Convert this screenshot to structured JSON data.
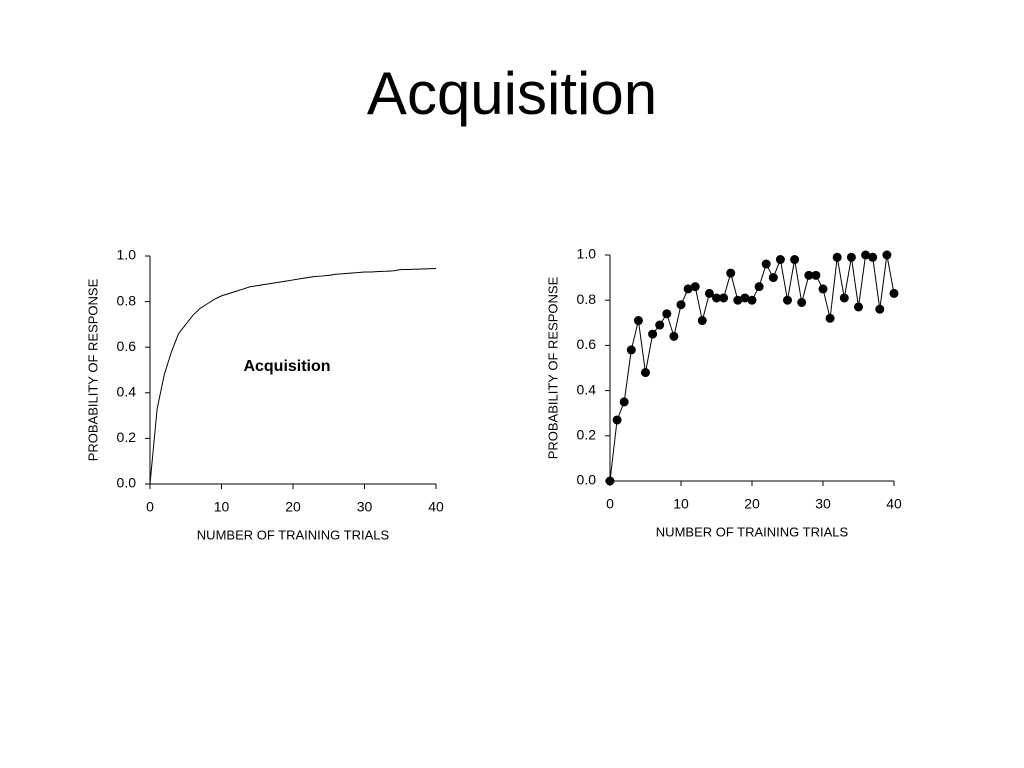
{
  "title": "Acquisition",
  "chart_data": [
    {
      "type": "line",
      "annotation": "Acquisition",
      "color": "#000000",
      "marker": "none",
      "x": [
        0,
        1,
        2,
        3,
        4,
        5,
        6,
        7,
        8,
        9,
        10,
        11,
        12,
        13,
        14,
        15,
        16,
        17,
        18,
        19,
        20,
        21,
        22,
        23,
        24,
        25,
        26,
        27,
        28,
        29,
        30,
        31,
        32,
        33,
        34,
        35,
        36,
        37,
        38,
        39,
        40
      ],
      "values": [
        0,
        0.33,
        0.48,
        0.58,
        0.66,
        0.7,
        0.74,
        0.77,
        0.79,
        0.81,
        0.825,
        0.835,
        0.845,
        0.855,
        0.865,
        0.87,
        0.875,
        0.88,
        0.885,
        0.89,
        0.895,
        0.9,
        0.905,
        0.91,
        0.912,
        0.915,
        0.92,
        0.922,
        0.925,
        0.927,
        0.93,
        0.93,
        0.932,
        0.933,
        0.935,
        0.94,
        0.941,
        0.942,
        0.943,
        0.944,
        0.945
      ],
      "xlabel": "NUMBER OF TRAINING TRIALS",
      "ylabel": "PROBABILITY OF RESPONSE",
      "xlim": [
        0,
        40
      ],
      "xticks": [
        0,
        10,
        20,
        30,
        40
      ],
      "ylim": [
        0,
        1
      ],
      "yticks": [
        {
          "value": 0,
          "label": "0.0"
        },
        {
          "value": 0.2,
          "label": "0.2"
        },
        {
          "value": 0.4,
          "label": "0.4"
        },
        {
          "value": 0.6,
          "label": "0.6"
        },
        {
          "value": 0.8,
          "label": "0.8"
        },
        {
          "value": 1,
          "label": "1.0"
        }
      ]
    },
    {
      "type": "line",
      "color": "#000000",
      "marker": "circle",
      "x": [
        0,
        1,
        2,
        3,
        4,
        5,
        6,
        7,
        8,
        9,
        10,
        11,
        12,
        13,
        14,
        15,
        16,
        17,
        18,
        19,
        20,
        21,
        22,
        23,
        24,
        25,
        26,
        27,
        28,
        29,
        30,
        31,
        32,
        33,
        34,
        35,
        36,
        37,
        38,
        39,
        40
      ],
      "values": [
        0,
        0.27,
        0.35,
        0.58,
        0.71,
        0.48,
        0.65,
        0.69,
        0.74,
        0.64,
        0.78,
        0.85,
        0.86,
        0.71,
        0.83,
        0.81,
        0.81,
        0.92,
        0.8,
        0.81,
        0.8,
        0.86,
        0.96,
        0.9,
        0.98,
        0.8,
        0.98,
        0.79,
        0.91,
        0.91,
        0.85,
        0.72,
        0.99,
        0.81,
        0.99,
        0.77,
        1,
        0.99,
        0.76,
        1,
        0.83
      ],
      "xlabel": "NUMBER OF TRAINING TRIALS",
      "ylabel": "PROBABILITY OF RESPONSE",
      "xlim": [
        0,
        40
      ],
      "xticks": [
        0,
        10,
        20,
        30,
        40
      ],
      "ylim": [
        0,
        1
      ],
      "yticks": [
        {
          "value": 0,
          "label": "0.0"
        },
        {
          "value": 0.2,
          "label": "0.2"
        },
        {
          "value": 0.4,
          "label": "0.4"
        },
        {
          "value": 0.6,
          "label": "0.6"
        },
        {
          "value": 0.8,
          "label": "0.8"
        },
        {
          "value": 1,
          "label": "1.0"
        }
      ]
    }
  ]
}
